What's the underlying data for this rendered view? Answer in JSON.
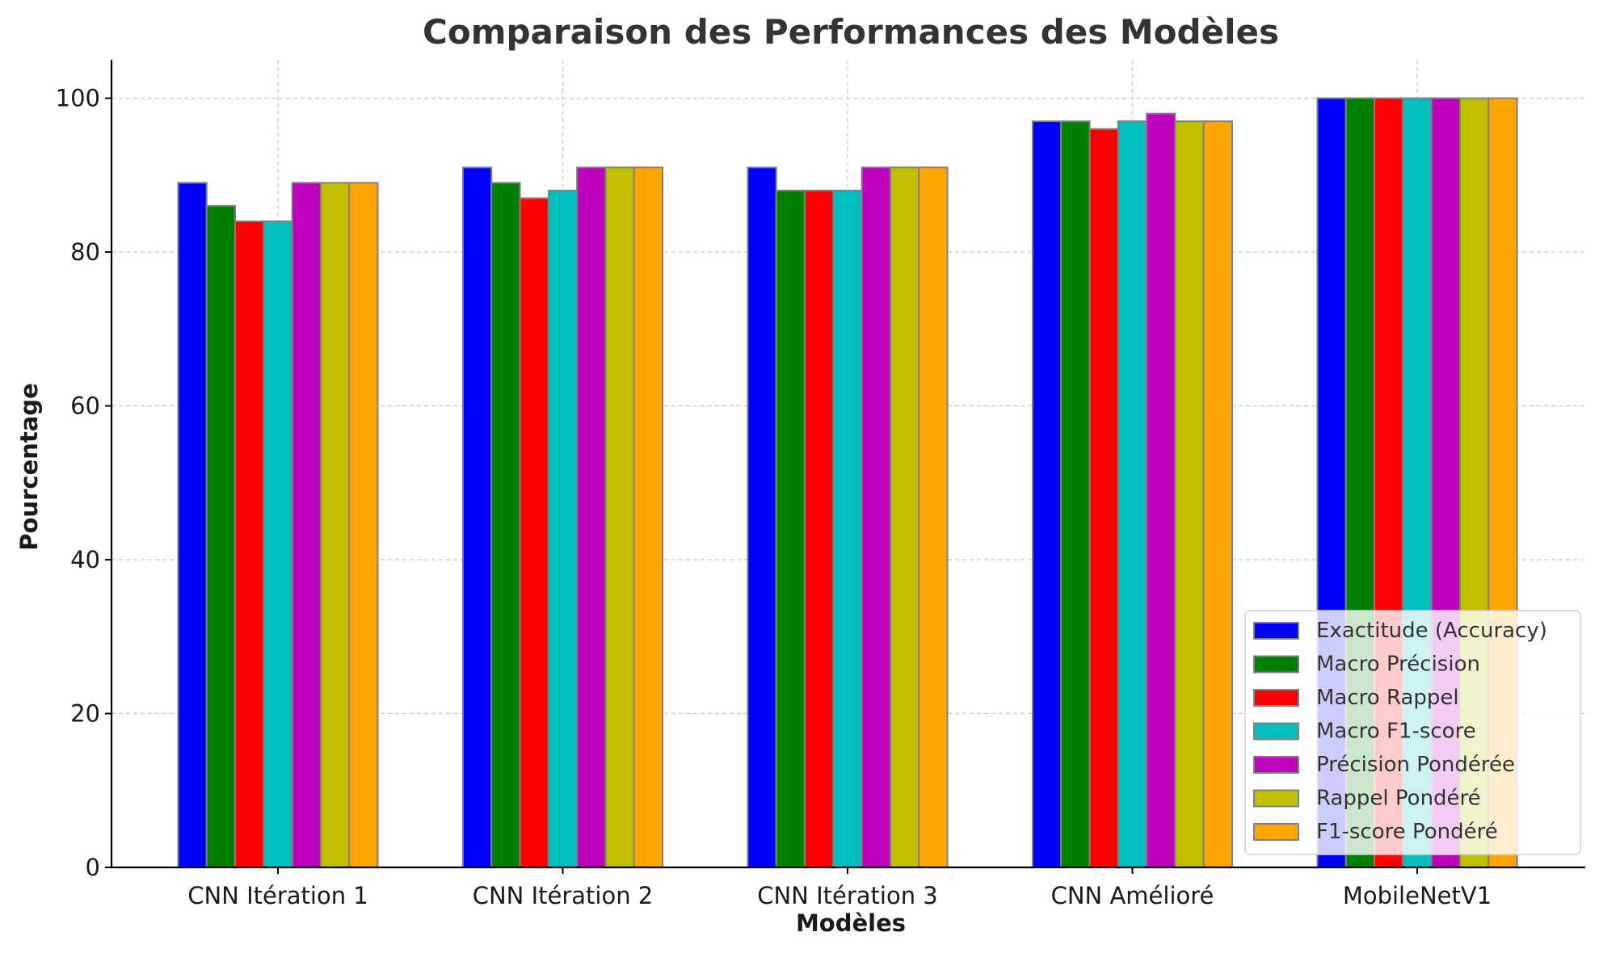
{
  "chart_data": {
    "type": "bar",
    "title": "Comparaison des Performances des Modèles",
    "xlabel": "Modèles",
    "ylabel": "Pourcentage",
    "categories": [
      "CNN Itération 1",
      "CNN Itération 2",
      "CNN Itération 3",
      "CNN Amélioré",
      "MobileNetV1"
    ],
    "ylim": [
      0,
      105
    ],
    "yticks": [
      0,
      20,
      40,
      60,
      80,
      100
    ],
    "grid": true,
    "legend_position": "bottom-right",
    "series": [
      {
        "name": "Exactitude (Accuracy)",
        "color": "#0000ff",
        "values": [
          89,
          91,
          91,
          97,
          100
        ]
      },
      {
        "name": "Macro Précision",
        "color": "#008000",
        "values": [
          86,
          89,
          88,
          97,
          100
        ]
      },
      {
        "name": "Macro Rappel",
        "color": "#ff0000",
        "values": [
          84,
          87,
          88,
          96,
          100
        ]
      },
      {
        "name": "Macro F1-score",
        "color": "#00bfbf",
        "values": [
          84,
          88,
          88,
          97,
          100
        ]
      },
      {
        "name": "Précision Pondérée",
        "color": "#bf00bf",
        "values": [
          89,
          91,
          91,
          98,
          100
        ]
      },
      {
        "name": "Rappel Pondéré",
        "color": "#bfbf00",
        "values": [
          89,
          91,
          91,
          97,
          100
        ]
      },
      {
        "name": "F1-score Pondéré",
        "color": "#ffa500",
        "values": [
          89,
          91,
          91,
          97,
          100
        ]
      }
    ]
  }
}
